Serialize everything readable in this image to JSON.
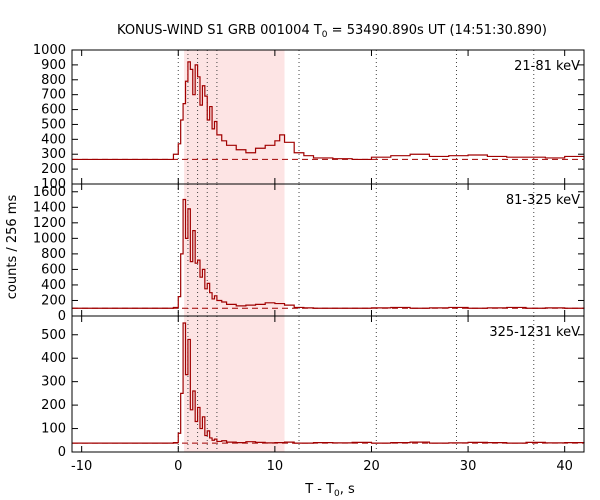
{
  "chart_data": {
    "type": "line",
    "title_main": "KONUS-WIND S1 GRB 001004 T",
    "title_sub": "0",
    "title_rest": " = 53490.890s UT (14:51:30.890)",
    "xlabel_main": "T - T",
    "xlabel_sub": "0",
    "xlabel_rest": ", s",
    "ylabel": "counts / 256 ms",
    "xlim": [
      -11,
      42
    ],
    "x_ticks": [
      -10,
      0,
      10,
      20,
      30,
      40
    ],
    "x_tick_labels": [
      "-10",
      "0",
      "10",
      "20",
      "30",
      "40"
    ],
    "shaded_interval": [
      0.6,
      11.0
    ],
    "vertical_dotted_lines": [
      0.0,
      1.0,
      2.0,
      3.0,
      4.0,
      12.5,
      20.5,
      28.8,
      36.8
    ],
    "line_color": "#a00000",
    "shade_color": "#fde4e4",
    "panels": [
      {
        "band": "21-81 keV",
        "ylim": [
          100,
          1000
        ],
        "y_ticks": [
          100,
          200,
          300,
          400,
          500,
          600,
          700,
          800,
          900,
          1000
        ],
        "y_tick_labels": [
          "100",
          "200",
          "300",
          "400",
          "500",
          "600",
          "700",
          "800",
          "900",
          "1000"
        ],
        "background": 265,
        "x": [
          -11,
          -1,
          -0.5,
          0,
          0.25,
          0.5,
          0.75,
          1,
          1.25,
          1.5,
          1.75,
          2,
          2.25,
          2.5,
          2.75,
          3,
          3.25,
          3.5,
          3.75,
          4,
          4.5,
          5,
          6,
          7,
          8,
          9,
          10,
          10.5,
          11,
          12,
          13,
          14,
          16,
          18,
          20,
          22,
          24,
          26,
          28,
          30,
          32,
          34,
          36,
          38,
          40,
          42
        ],
        "y": [
          265,
          265,
          300,
          370,
          530,
          640,
          790,
          920,
          870,
          700,
          900,
          820,
          630,
          760,
          690,
          530,
          620,
          470,
          520,
          430,
          390,
          360,
          330,
          310,
          340,
          360,
          390,
          430,
          380,
          310,
          290,
          275,
          270,
          265,
          280,
          290,
          300,
          285,
          290,
          295,
          285,
          280,
          280,
          275,
          285,
          270
        ]
      },
      {
        "band": "81-325 keV",
        "ylim": [
          0,
          1700
        ],
        "y_ticks": [
          0,
          200,
          400,
          600,
          800,
          1000,
          1200,
          1400,
          1600
        ],
        "y_tick_labels": [
          "0",
          "200",
          "400",
          "600",
          "800",
          "1000",
          "1200",
          "1400",
          "1600"
        ],
        "background": 100,
        "x": [
          -11,
          -1,
          -0.5,
          0,
          0.25,
          0.5,
          0.75,
          1,
          1.25,
          1.5,
          1.75,
          2,
          2.25,
          2.5,
          2.75,
          3,
          3.25,
          3.5,
          3.75,
          4,
          4.5,
          5,
          6,
          7,
          8,
          9,
          10,
          11,
          12,
          13,
          14,
          16,
          18,
          20,
          22,
          24,
          26,
          28,
          30,
          32,
          34,
          36,
          38,
          40,
          42
        ],
        "y": [
          100,
          100,
          110,
          250,
          800,
          1500,
          1000,
          1380,
          700,
          1100,
          680,
          720,
          500,
          600,
          350,
          420,
          300,
          220,
          260,
          200,
          180,
          150,
          130,
          140,
          150,
          170,
          160,
          140,
          110,
          105,
          100,
          100,
          100,
          105,
          110,
          100,
          105,
          110,
          100,
          105,
          110,
          100,
          105,
          100,
          110
        ]
      },
      {
        "band": "325-1231 keV",
        "ylim": [
          0,
          580
        ],
        "y_ticks": [
          0,
          100,
          200,
          300,
          400,
          500
        ],
        "y_tick_labels": [
          "0",
          "100",
          "200",
          "300",
          "400",
          "500"
        ],
        "background": 38,
        "x": [
          -11,
          -1,
          -0.5,
          0,
          0.25,
          0.5,
          0.75,
          1,
          1.25,
          1.5,
          1.75,
          2,
          2.25,
          2.5,
          2.75,
          3,
          3.25,
          3.5,
          3.75,
          4,
          4.5,
          5,
          6,
          7,
          8,
          9,
          10,
          11,
          12,
          14,
          16,
          18,
          20,
          22,
          24,
          26,
          28,
          30,
          32,
          34,
          36,
          38,
          40,
          42
        ],
        "y": [
          38,
          38,
          40,
          80,
          250,
          550,
          330,
          480,
          180,
          260,
          130,
          190,
          100,
          150,
          70,
          90,
          60,
          50,
          55,
          45,
          48,
          42,
          40,
          44,
          41,
          39,
          40,
          42,
          38,
          40,
          39,
          41,
          38,
          40,
          42,
          38,
          39,
          41,
          40,
          38,
          41,
          39,
          40,
          38
        ]
      }
    ]
  }
}
